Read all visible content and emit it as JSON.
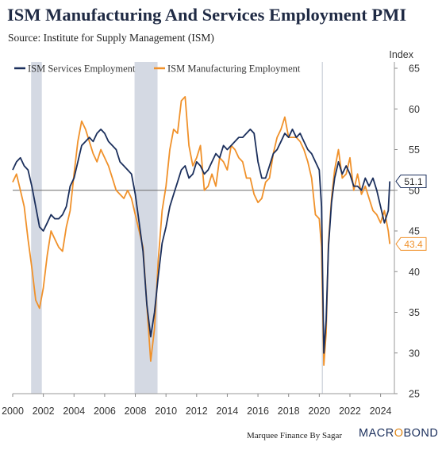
{
  "title": "ISM Manufacturing And Services Employment PMI",
  "subtitle": "Source: Institute for Supply Management (ISM)",
  "footer": {
    "credit": "Marquee Finance By Sagar",
    "brand": "MACROBOND"
  },
  "chart_data": {
    "type": "line",
    "ylabel": "Index",
    "ylim": [
      25,
      65
    ],
    "xlim": [
      2000.0,
      2024.9
    ],
    "x_ticks": [
      "2000",
      "2002",
      "2004",
      "2006",
      "2008",
      "2010",
      "2012",
      "2014",
      "2016",
      "2018",
      "2020",
      "2022",
      "2024"
    ],
    "y_ticks": [
      25,
      30,
      35,
      40,
      45,
      50,
      55,
      60,
      65
    ],
    "reference_line": 50,
    "recessions": [
      [
        2001.2,
        2001.9
      ],
      [
        2007.95,
        2009.45
      ]
    ],
    "covid_marker": 2020.2,
    "legend_position": "top-left",
    "colors": {
      "services": "#1b2f5c",
      "manufacturing": "#f0912a",
      "recession": "#d4d9e3"
    },
    "series": [
      {
        "name": "ISM Services Employment",
        "last_value_label": "51.1",
        "points": [
          [
            2000.0,
            52.5
          ],
          [
            2000.25,
            53.5
          ],
          [
            2000.5,
            54.0
          ],
          [
            2000.75,
            53.0
          ],
          [
            2001.0,
            52.5
          ],
          [
            2001.25,
            50.5
          ],
          [
            2001.5,
            48.0
          ],
          [
            2001.75,
            45.5
          ],
          [
            2002.0,
            45.0
          ],
          [
            2002.25,
            46.0
          ],
          [
            2002.5,
            47.0
          ],
          [
            2002.75,
            46.5
          ],
          [
            2003.0,
            46.5
          ],
          [
            2003.25,
            47.0
          ],
          [
            2003.5,
            48.0
          ],
          [
            2003.75,
            50.5
          ],
          [
            2004.0,
            51.5
          ],
          [
            2004.25,
            53.5
          ],
          [
            2004.5,
            55.5
          ],
          [
            2004.75,
            56.0
          ],
          [
            2005.0,
            56.5
          ],
          [
            2005.25,
            56.0
          ],
          [
            2005.5,
            57.0
          ],
          [
            2005.75,
            57.5
          ],
          [
            2006.0,
            57.0
          ],
          [
            2006.25,
            56.0
          ],
          [
            2006.5,
            55.5
          ],
          [
            2006.75,
            55.0
          ],
          [
            2007.0,
            53.5
          ],
          [
            2007.25,
            53.0
          ],
          [
            2007.5,
            52.5
          ],
          [
            2007.75,
            52.0
          ],
          [
            2008.0,
            49.5
          ],
          [
            2008.25,
            46.0
          ],
          [
            2008.5,
            42.5
          ],
          [
            2008.75,
            36.0
          ],
          [
            2009.0,
            32.0
          ],
          [
            2009.25,
            35.0
          ],
          [
            2009.5,
            39.5
          ],
          [
            2009.75,
            43.5
          ],
          [
            2010.0,
            45.5
          ],
          [
            2010.25,
            48.0
          ],
          [
            2010.5,
            49.5
          ],
          [
            2010.75,
            51.0
          ],
          [
            2011.0,
            52.5
          ],
          [
            2011.25,
            53.0
          ],
          [
            2011.5,
            51.5
          ],
          [
            2011.75,
            52.0
          ],
          [
            2012.0,
            53.5
          ],
          [
            2012.25,
            53.0
          ],
          [
            2012.5,
            52.0
          ],
          [
            2012.75,
            52.5
          ],
          [
            2013.0,
            53.5
          ],
          [
            2013.25,
            54.5
          ],
          [
            2013.5,
            54.0
          ],
          [
            2013.75,
            55.5
          ],
          [
            2014.0,
            55.0
          ],
          [
            2014.25,
            55.5
          ],
          [
            2014.5,
            56.0
          ],
          [
            2014.75,
            56.5
          ],
          [
            2015.0,
            56.5
          ],
          [
            2015.25,
            57.0
          ],
          [
            2015.5,
            57.5
          ],
          [
            2015.75,
            57.0
          ],
          [
            2016.0,
            53.5
          ],
          [
            2016.25,
            51.5
          ],
          [
            2016.5,
            51.5
          ],
          [
            2016.75,
            53.0
          ],
          [
            2017.0,
            54.5
          ],
          [
            2017.25,
            55.0
          ],
          [
            2017.5,
            56.0
          ],
          [
            2017.75,
            57.0
          ],
          [
            2018.0,
            56.5
          ],
          [
            2018.25,
            57.5
          ],
          [
            2018.5,
            56.5
          ],
          [
            2018.75,
            57.0
          ],
          [
            2019.0,
            56.0
          ],
          [
            2019.25,
            55.0
          ],
          [
            2019.5,
            54.5
          ],
          [
            2019.75,
            53.5
          ],
          [
            2020.0,
            52.5
          ],
          [
            2020.15,
            48.0
          ],
          [
            2020.3,
            30.0
          ],
          [
            2020.45,
            34.0
          ],
          [
            2020.6,
            43.0
          ],
          [
            2020.8,
            48.5
          ],
          [
            2021.0,
            51.5
          ],
          [
            2021.25,
            53.5
          ],
          [
            2021.5,
            52.0
          ],
          [
            2021.75,
            53.0
          ],
          [
            2022.0,
            52.0
          ],
          [
            2022.25,
            50.5
          ],
          [
            2022.5,
            50.5
          ],
          [
            2022.75,
            50.0
          ],
          [
            2023.0,
            51.5
          ],
          [
            2023.25,
            50.5
          ],
          [
            2023.5,
            51.5
          ],
          [
            2023.75,
            50.0
          ],
          [
            2024.0,
            48.0
          ],
          [
            2024.25,
            46.0
          ],
          [
            2024.5,
            47.5
          ],
          [
            2024.6,
            51.1
          ]
        ]
      },
      {
        "name": "ISM Manufacturing Employment",
        "last_value_label": "43.4",
        "points": [
          [
            2000.0,
            51.0
          ],
          [
            2000.25,
            52.0
          ],
          [
            2000.5,
            50.0
          ],
          [
            2000.75,
            48.0
          ],
          [
            2001.0,
            44.0
          ],
          [
            2001.25,
            40.5
          ],
          [
            2001.5,
            36.5
          ],
          [
            2001.75,
            35.5
          ],
          [
            2002.0,
            38.0
          ],
          [
            2002.25,
            42.0
          ],
          [
            2002.5,
            45.0
          ],
          [
            2002.75,
            44.0
          ],
          [
            2003.0,
            43.0
          ],
          [
            2003.25,
            42.5
          ],
          [
            2003.5,
            45.5
          ],
          [
            2003.75,
            47.5
          ],
          [
            2004.0,
            52.0
          ],
          [
            2004.25,
            56.0
          ],
          [
            2004.5,
            58.5
          ],
          [
            2004.75,
            57.5
          ],
          [
            2005.0,
            56.0
          ],
          [
            2005.25,
            54.5
          ],
          [
            2005.5,
            53.5
          ],
          [
            2005.75,
            55.0
          ],
          [
            2006.0,
            54.0
          ],
          [
            2006.25,
            53.0
          ],
          [
            2006.5,
            51.5
          ],
          [
            2006.75,
            50.0
          ],
          [
            2007.0,
            49.5
          ],
          [
            2007.25,
            49.0
          ],
          [
            2007.5,
            50.0
          ],
          [
            2007.75,
            49.0
          ],
          [
            2008.0,
            47.0
          ],
          [
            2008.25,
            45.0
          ],
          [
            2008.5,
            43.0
          ],
          [
            2008.75,
            36.0
          ],
          [
            2009.0,
            29.0
          ],
          [
            2009.25,
            33.0
          ],
          [
            2009.5,
            41.5
          ],
          [
            2009.75,
            47.5
          ],
          [
            2010.0,
            50.5
          ],
          [
            2010.25,
            55.0
          ],
          [
            2010.5,
            57.5
          ],
          [
            2010.75,
            57.0
          ],
          [
            2011.0,
            61.0
          ],
          [
            2011.25,
            61.5
          ],
          [
            2011.5,
            55.5
          ],
          [
            2011.75,
            53.0
          ],
          [
            2012.0,
            54.0
          ],
          [
            2012.25,
            55.5
          ],
          [
            2012.5,
            50.0
          ],
          [
            2012.75,
            50.5
          ],
          [
            2013.0,
            52.0
          ],
          [
            2013.25,
            50.5
          ],
          [
            2013.5,
            54.0
          ],
          [
            2013.75,
            53.5
          ],
          [
            2014.0,
            52.5
          ],
          [
            2014.25,
            55.5
          ],
          [
            2014.5,
            55.0
          ],
          [
            2014.75,
            54.0
          ],
          [
            2015.0,
            53.5
          ],
          [
            2015.25,
            51.5
          ],
          [
            2015.5,
            51.5
          ],
          [
            2015.75,
            49.5
          ],
          [
            2016.0,
            48.5
          ],
          [
            2016.25,
            49.0
          ],
          [
            2016.5,
            51.0
          ],
          [
            2016.75,
            51.5
          ],
          [
            2017.0,
            54.5
          ],
          [
            2017.25,
            56.5
          ],
          [
            2017.5,
            57.5
          ],
          [
            2017.75,
            59.0
          ],
          [
            2018.0,
            56.5
          ],
          [
            2018.25,
            56.5
          ],
          [
            2018.5,
            56.5
          ],
          [
            2018.75,
            56.0
          ],
          [
            2019.0,
            55.0
          ],
          [
            2019.25,
            53.5
          ],
          [
            2019.5,
            51.5
          ],
          [
            2019.75,
            47.0
          ],
          [
            2020.0,
            46.5
          ],
          [
            2020.15,
            43.0
          ],
          [
            2020.3,
            28.5
          ],
          [
            2020.45,
            32.5
          ],
          [
            2020.6,
            43.5
          ],
          [
            2020.8,
            49.0
          ],
          [
            2021.0,
            52.5
          ],
          [
            2021.25,
            55.0
          ],
          [
            2021.5,
            51.5
          ],
          [
            2021.75,
            52.0
          ],
          [
            2022.0,
            54.0
          ],
          [
            2022.25,
            50.0
          ],
          [
            2022.5,
            52.0
          ],
          [
            2022.75,
            49.5
          ],
          [
            2023.0,
            50.5
          ],
          [
            2023.25,
            49.0
          ],
          [
            2023.5,
            47.5
          ],
          [
            2023.75,
            47.0
          ],
          [
            2024.0,
            46.0
          ],
          [
            2024.25,
            47.5
          ],
          [
            2024.5,
            45.0
          ],
          [
            2024.6,
            43.4
          ]
        ]
      }
    ]
  }
}
